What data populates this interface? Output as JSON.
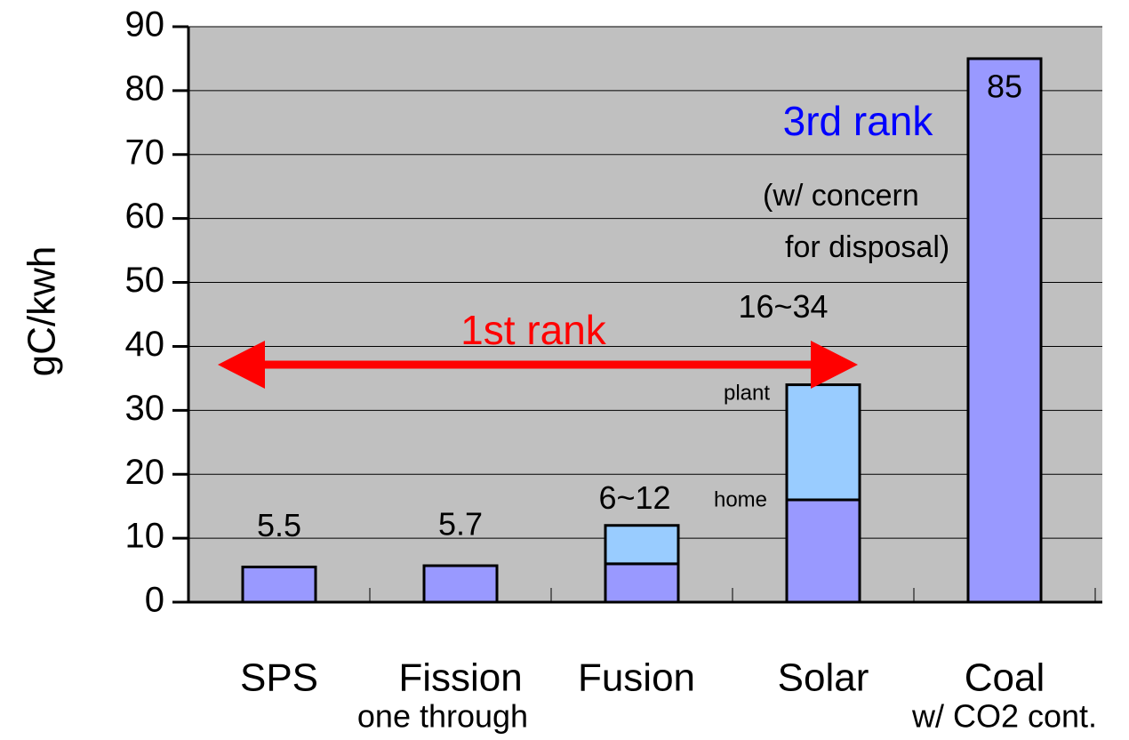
{
  "chart_data": {
    "type": "bar",
    "stacked": true,
    "y_label": "gC/kwh",
    "categories": [
      "SPS",
      "Fission",
      "Fusion",
      "Solar",
      "Coal"
    ],
    "category_notes": [
      null,
      "one through",
      null,
      null,
      "w/ CO2 cont."
    ],
    "series": [
      {
        "color": "#9999ff",
        "values": [
          5.5,
          5.7,
          6,
          16,
          85
        ],
        "value_labels": [
          "5.5",
          "5.7",
          null,
          null,
          "85"
        ]
      },
      {
        "color": "#99ccff",
        "values": [
          null,
          null,
          6,
          18,
          null
        ]
      }
    ],
    "range_labels": [
      null,
      null,
      "6~12",
      "16~34",
      null
    ],
    "segment_notes": [
      {
        "text": "home"
      },
      {
        "text": "plant"
      }
    ],
    "annotations": [
      {
        "text": "1st rank",
        "color": "#ff0000"
      },
      {
        "text": "3rd rank",
        "color": "#0000ff"
      },
      {
        "text": "(w/ concern",
        "color": "#000000"
      },
      {
        "text": "for disposal)",
        "color": "#000000"
      }
    ],
    "ylim": [
      0,
      90
    ],
    "yticks": [
      0,
      10,
      20,
      30,
      40,
      50,
      60,
      70,
      80,
      90
    ],
    "grid": true,
    "plot_color": "#c0c0c0"
  }
}
